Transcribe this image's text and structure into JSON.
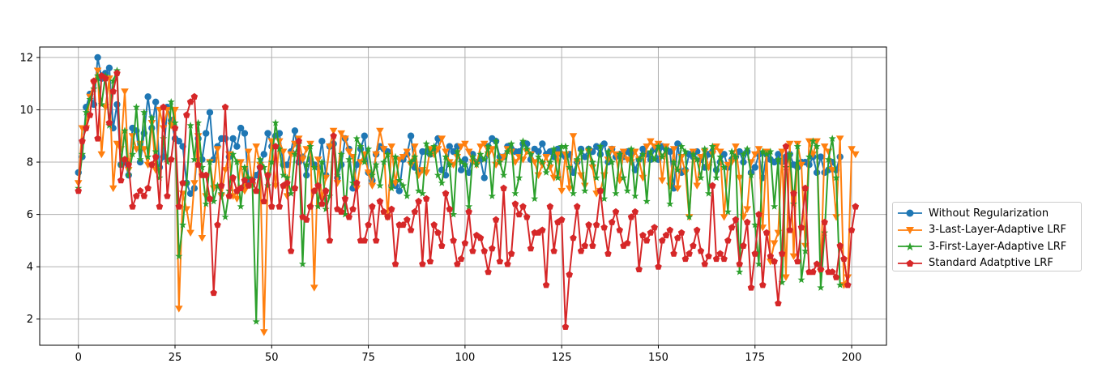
{
  "chart_data": {
    "type": "line",
    "title": "",
    "xlabel": "",
    "ylabel": "",
    "xlim": [
      -10,
      209
    ],
    "ylim": [
      1,
      12.4
    ],
    "xticks": [
      0,
      25,
      50,
      75,
      100,
      125,
      150,
      175,
      200
    ],
    "yticks": [
      2,
      4,
      6,
      8,
      10,
      12
    ],
    "grid": true,
    "legend_position": "right, outside plot",
    "series": [
      {
        "name": "Without Regularization",
        "color": "#1f77b4",
        "marker": "circle",
        "values": [
          7.6,
          8.2,
          10.1,
          10.6,
          10.2,
          12.0,
          11.2,
          11.4,
          11.6,
          9.3,
          10.2,
          7.9,
          8.0,
          7.5,
          9.3,
          9.2,
          8.0,
          9.1,
          10.5,
          9.3,
          10.3,
          7.8,
          8.2,
          10.1,
          9.6,
          8.9,
          8.8,
          8.6,
          7.2,
          6.8,
          7.0,
          8.9,
          8.1,
          9.1,
          9.9,
          8.1,
          8.6,
          8.9,
          8.9,
          8.2,
          8.9,
          8.6,
          9.3,
          9.1,
          7.3,
          7.2,
          7.5,
          7.8,
          8.3,
          9.1,
          8.6,
          9.0,
          9.1,
          7.9,
          7.9,
          8.4,
          9.2,
          8.0,
          8.2,
          7.5,
          8.1,
          7.9,
          7.8,
          8.8,
          7.5,
          8.6,
          8.7,
          7.4,
          7.9,
          8.9,
          8.5,
          7.0,
          7.9,
          8.5,
          9.0,
          7.6,
          7.3,
          8.3,
          8.6,
          8.5,
          8.4,
          7.1,
          7.1,
          6.9,
          8.1,
          8.3,
          9.0,
          7.8,
          7.6,
          8.4,
          8.4,
          8.3,
          8.5,
          8.9,
          7.7,
          7.5,
          8.6,
          8.4,
          8.6,
          7.7,
          8.1,
          7.6,
          8.3,
          8.0,
          8.1,
          7.4,
          8.6,
          8.9,
          8.8,
          8.2,
          8.2,
          8.6,
          8.5,
          8.4,
          8.4,
          8.7,
          8.7,
          8.1,
          8.5,
          8.4,
          8.7,
          8.3,
          8.4,
          8.2,
          8.5,
          8.3,
          8.2,
          8.3,
          7.6,
          8.0,
          8.5,
          8.2,
          8.5,
          8.4,
          8.6,
          8.3,
          8.7,
          8.0,
          8.5,
          8.2,
          8.3,
          8.2,
          8.4,
          8.3,
          7.7,
          8.1,
          8.5,
          8.3,
          8.1,
          8.5,
          8.1,
          8.6,
          8.5,
          8.4,
          7.0,
          8.7,
          7.6,
          7.7,
          8.3,
          8.2,
          8.4,
          8.1,
          7.8,
          8.3,
          8.4,
          7.7,
          8.0,
          8.3,
          7.8,
          8.1,
          8.2,
          8.4,
          8.0,
          8.4,
          7.6,
          7.8,
          8.3,
          7.4,
          8.3,
          8.1,
          8.0,
          8.3,
          8.0,
          8.2,
          8.3,
          7.9,
          7.8,
          8.0,
          8.0,
          7.9,
          8.2,
          7.6,
          8.2,
          7.6,
          7.7,
          8.0,
          7.7,
          8.2
        ]
      },
      {
        "name": "3-Last-Layer-Adaptive LRF",
        "color": "#ff7f0e",
        "marker": "triangle-down",
        "values": [
          7.2,
          9.3,
          9.3,
          10.5,
          11.0,
          11.5,
          8.3,
          10.1,
          11.2,
          7.0,
          8.7,
          8.5,
          10.7,
          7.7,
          9.0,
          8.5,
          8.7,
          8.5,
          7.9,
          9.5,
          7.7,
          10.0,
          9.3,
          10.0,
          9.4,
          10.0,
          2.4,
          6.8,
          6.2,
          5.3,
          7.2,
          9.0,
          5.1,
          6.7,
          8.0,
          7.0,
          8.5,
          6.7,
          7.7,
          8.3,
          6.7,
          6.6,
          8.0,
          6.9,
          8.4,
          7.1,
          8.6,
          7.9,
          1.5,
          7.5,
          8.8,
          7.1,
          8.8,
          8.4,
          6.7,
          8.3,
          8.7,
          8.9,
          8.1,
          8.5,
          8.7,
          3.2,
          8.1,
          6.6,
          7.4,
          8.6,
          9.2,
          7.2,
          9.1,
          8.9,
          8.4,
          8.2,
          7.0,
          8.0,
          8.3,
          7.6,
          7.1,
          8.3,
          9.2,
          8.5,
          5.9,
          8.6,
          7.2,
          8.1,
          8.2,
          8.4,
          7.9,
          8.6,
          7.5,
          7.7,
          7.6,
          8.5,
          8.3,
          8.5,
          8.9,
          8.4,
          8.0,
          7.9,
          8.2,
          8.6,
          8.7,
          8.4,
          8.0,
          7.9,
          8.6,
          8.7,
          8.3,
          8.5,
          7.9,
          8.0,
          8.2,
          8.5,
          8.4,
          8.0,
          8.2,
          8.1,
          8.4,
          8.3,
          8.0,
          7.5,
          7.9,
          8.2,
          7.8,
          7.4,
          8.3,
          6.9,
          8.3,
          7.0,
          9.0,
          8.0,
          7.5,
          7.1,
          8.4,
          7.8,
          6.8,
          6.9,
          7.5,
          8.1,
          8.5,
          8.3,
          7.3,
          8.4,
          8.1,
          8.0,
          8.4,
          8.1,
          7.4,
          8.6,
          8.8,
          8.6,
          8.7,
          7.3,
          8.6,
          7.1,
          8.5,
          7.0,
          8.2,
          7.6,
          5.9,
          8.4,
          7.1,
          8.2,
          8.4,
          7.8,
          8.3,
          8.6,
          8.4,
          5.9,
          7.9,
          8.0,
          8.6,
          7.4,
          5.9,
          6.2,
          8.0,
          8.3,
          8.5,
          5.5,
          8.4,
          4.2,
          4.9,
          5.3,
          8.4,
          3.6,
          8.7,
          4.4,
          8.7,
          7.9,
          4.8,
          8.8,
          8.3,
          8.8,
          3.8,
          8.6,
          8.4,
          7.7,
          5.9,
          8.9,
          3.3,
          3.6,
          8.5,
          8.3
        ]
      },
      {
        "name": "3-First-Layer-Adaptive LRF",
        "color": "#2ca02c",
        "marker": "star",
        "values": [
          7.0,
          8.3,
          9.9,
          10.4,
          10.8,
          11.3,
          10.2,
          11.3,
          9.4,
          11.1,
          11.5,
          7.9,
          9.2,
          7.5,
          8.3,
          10.1,
          8.1,
          9.9,
          8.2,
          9.7,
          8.4,
          7.4,
          8.9,
          8.0,
          10.3,
          9.5,
          4.4,
          5.6,
          7.2,
          9.4,
          8.1,
          9.5,
          7.8,
          6.4,
          8.0,
          6.5,
          7.1,
          6.8,
          5.9,
          6.9,
          8.3,
          8.0,
          6.3,
          7.8,
          7.4,
          7.3,
          1.9,
          8.1,
          7.8,
          7.1,
          8.0,
          9.5,
          8.5,
          7.5,
          7.4,
          6.8,
          8.3,
          8.7,
          4.1,
          7.9,
          8.6,
          7.8,
          6.3,
          8.0,
          6.2,
          6.7,
          9.0,
          7.5,
          8.3,
          6.0,
          8.1,
          7.2,
          8.9,
          8.6,
          8.0,
          8.5,
          7.5,
          7.9,
          7.1,
          8.0,
          8.3,
          7.0,
          8.2,
          7.3,
          7.1,
          6.7,
          8.0,
          8.2,
          6.9,
          6.8,
          8.7,
          8.3,
          8.6,
          7.5,
          7.2,
          8.2,
          7.9,
          6.0,
          8.4,
          8.0,
          7.9,
          6.3,
          8.2,
          7.9,
          8.3,
          8.1,
          8.6,
          6.7,
          8.8,
          8.0,
          7.5,
          8.4,
          8.7,
          6.8,
          7.4,
          8.8,
          8.5,
          8.3,
          6.6,
          8.2,
          8.0,
          7.6,
          8.0,
          8.5,
          7.4,
          8.6,
          8.6,
          7.8,
          6.8,
          8.1,
          8.4,
          6.9,
          8.5,
          8.0,
          7.4,
          8.6,
          6.6,
          8.4,
          8.0,
          6.8,
          8.3,
          7.4,
          6.9,
          8.5,
          6.7,
          8.1,
          8.3,
          6.5,
          8.4,
          8.1,
          8.6,
          8.2,
          8.5,
          6.4,
          8.0,
          7.7,
          8.6,
          8.4,
          5.9,
          8.3,
          8.1,
          7.4,
          8.5,
          6.8,
          8.6,
          7.4,
          8.2,
          7.8,
          6.1,
          8.4,
          8.2,
          3.8,
          8.3,
          8.5,
          7.5,
          5.6,
          4.1,
          8.4,
          8.3,
          8.4,
          6.3,
          8.1,
          3.4,
          7.8,
          8.3,
          6.4,
          8.6,
          3.5,
          4.6,
          8.2,
          8.8,
          8.6,
          3.2,
          5.3,
          8.1,
          8.9,
          7.4,
          3.3
        ]
      },
      {
        "name": "Standard Adatptive LRF",
        "color": "#d62728",
        "marker": "pentagon",
        "values": [
          6.9,
          8.8,
          9.3,
          9.8,
          11.1,
          8.9,
          11.3,
          11.2,
          9.5,
          10.7,
          11.4,
          7.3,
          8.1,
          7.9,
          6.3,
          6.7,
          6.9,
          6.7,
          7.0,
          7.9,
          8.2,
          6.3,
          10.1,
          6.7,
          8.1,
          9.3,
          6.3,
          7.2,
          9.8,
          10.3,
          10.5,
          7.9,
          7.5,
          7.5,
          6.6,
          3.0,
          5.6,
          7.1,
          10.1,
          6.7,
          7.4,
          6.9,
          7.0,
          7.3,
          7.1,
          7.3,
          6.9,
          7.8,
          6.5,
          7.5,
          6.3,
          8.6,
          6.3,
          7.1,
          7.2,
          4.6,
          7.0,
          8.8,
          5.9,
          5.8,
          6.3,
          6.9,
          7.1,
          6.4,
          6.9,
          5.0,
          9.0,
          6.2,
          6.1,
          6.6,
          5.9,
          6.2,
          7.2,
          5.0,
          5.0,
          5.6,
          6.3,
          5.0,
          6.5,
          6.1,
          5.9,
          6.2,
          4.1,
          5.6,
          5.6,
          5.8,
          5.4,
          6.1,
          6.5,
          4.1,
          6.6,
          4.2,
          5.6,
          5.3,
          4.8,
          6.8,
          6.2,
          5.0,
          4.1,
          4.3,
          4.9,
          6.1,
          4.6,
          5.2,
          5.1,
          4.6,
          3.8,
          4.7,
          5.8,
          4.2,
          7.0,
          4.1,
          4.5,
          6.4,
          6.0,
          6.3,
          5.9,
          4.7,
          5.3,
          5.3,
          5.4,
          3.3,
          6.3,
          4.6,
          5.7,
          5.8,
          1.7,
          3.7,
          5.1,
          6.3,
          4.6,
          4.8,
          5.6,
          4.8,
          5.6,
          6.9,
          5.5,
          4.5,
          5.7,
          6.1,
          5.4,
          4.8,
          4.9,
          5.9,
          6.1,
          3.9,
          5.2,
          5.0,
          5.3,
          5.5,
          4.0,
          5.0,
          5.2,
          5.4,
          4.5,
          5.1,
          5.3,
          4.3,
          4.5,
          4.8,
          5.4,
          4.6,
          4.1,
          4.4,
          7.1,
          4.3,
          4.5,
          4.3,
          5.0,
          5.5,
          5.8,
          4.1,
          4.8,
          5.7,
          3.2,
          4.5,
          6.0,
          3.3,
          5.3,
          4.4,
          4.2,
          2.6,
          4.5,
          8.6,
          5.4,
          6.8,
          4.2,
          5.5,
          7.0,
          3.8,
          3.8,
          4.1,
          3.9,
          5.7,
          3.8,
          3.8,
          3.6,
          4.8,
          4.3,
          3.3,
          5.4,
          6.3
        ]
      }
    ]
  }
}
